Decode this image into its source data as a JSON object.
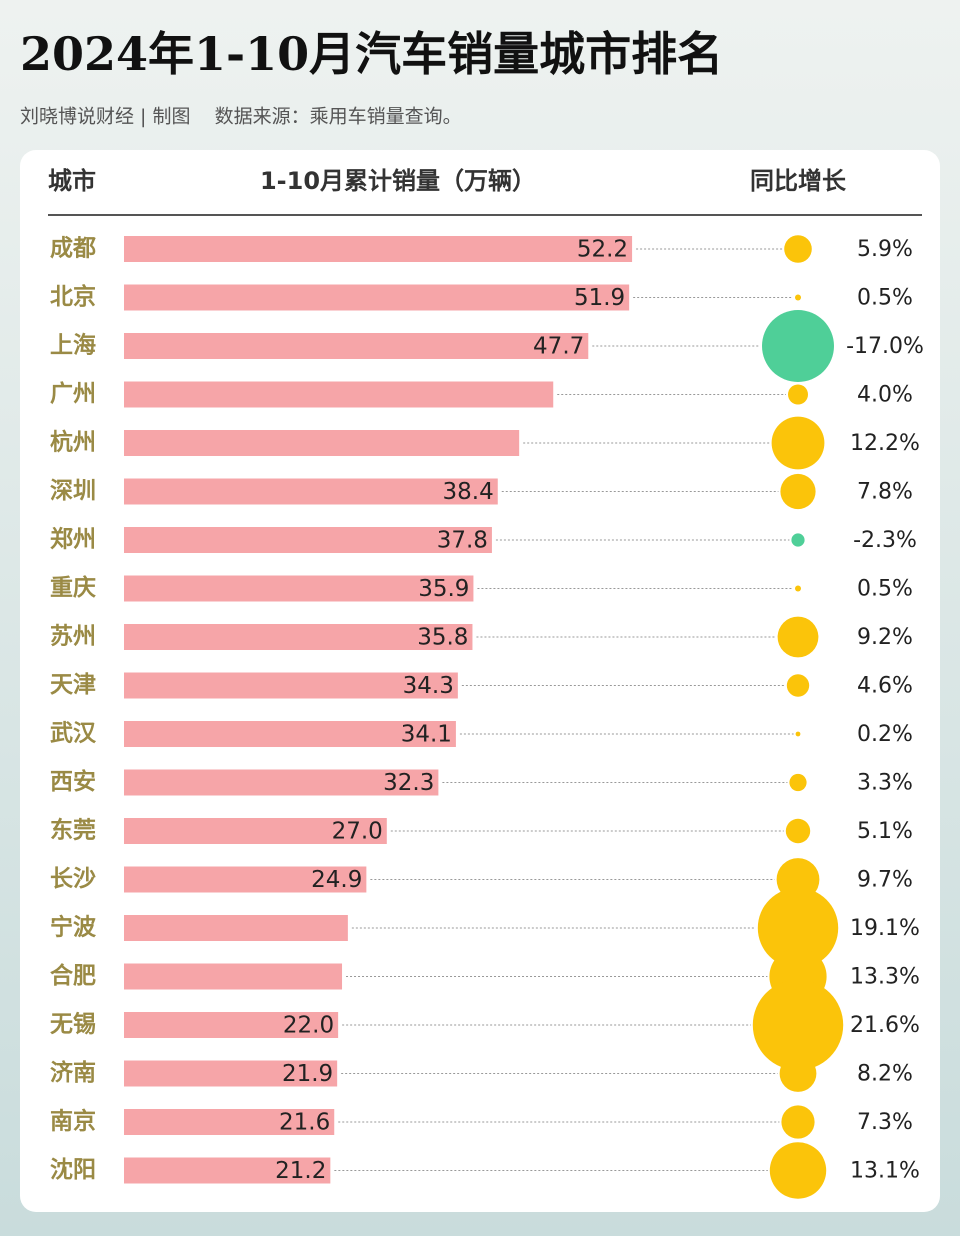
{
  "chart_data": {
    "type": "bar",
    "orientation": "horizontal",
    "title": "2024年1-10月汽车销量城市排名",
    "subtitle": "刘晓博说财经 | 制图    数据来源：乘用车销量查询。",
    "headers": [
      "城市",
      "1-10月累计销量（万辆）",
      "同比增长"
    ],
    "categories": [
      "成都",
      "北京",
      "上海",
      "广州",
      "杭州",
      "深圳",
      "郑州",
      "重庆",
      "苏州",
      "天津",
      "武汉",
      "西安",
      "东莞",
      "长沙",
      "宁波",
      "合肥",
      "无锡",
      "济南",
      "南京",
      "沈阳"
    ],
    "series": [
      {
        "name": "1-10月累计销量（万辆）",
        "color": "#f6a5a8",
        "values": [
          52.2,
          51.9,
          47.7,
          44.1,
          40.6,
          38.4,
          37.8,
          35.9,
          35.8,
          34.3,
          34.1,
          32.3,
          27.0,
          24.9,
          23.0,
          22.4,
          22.0,
          21.9,
          21.6,
          21.2
        ],
        "value_labels": [
          "52.2",
          "51.9",
          "47.7",
          null,
          null,
          "38.4",
          "37.8",
          "35.9",
          "35.8",
          "34.3",
          "34.1",
          "32.3",
          "27.0",
          "24.9",
          null,
          null,
          "22.0",
          "21.9",
          "21.6",
          "21.2"
        ]
      },
      {
        "name": "同比增长",
        "color": "#fbc40a",
        "negative_color": "#4fcf98",
        "values": [
          5.9,
          0.5,
          -17.0,
          4.0,
          12.2,
          7.8,
          -2.3,
          0.5,
          9.2,
          4.6,
          0.2,
          3.3,
          5.1,
          9.7,
          19.1,
          13.3,
          21.6,
          8.2,
          7.3,
          13.1
        ],
        "value_labels": [
          "5.9%",
          "0.5%",
          "-17.0%",
          "4.0%",
          "12.2%",
          "7.8%",
          "-2.3%",
          "0.5%",
          "9.2%",
          "4.6%",
          "0.2%",
          "3.3%",
          "5.1%",
          "9.7%",
          "19.1%",
          "13.3%",
          "21.6%",
          "8.2%",
          "7.3%",
          "13.1%"
        ]
      }
    ],
    "xlim": [
      0,
      60
    ]
  }
}
